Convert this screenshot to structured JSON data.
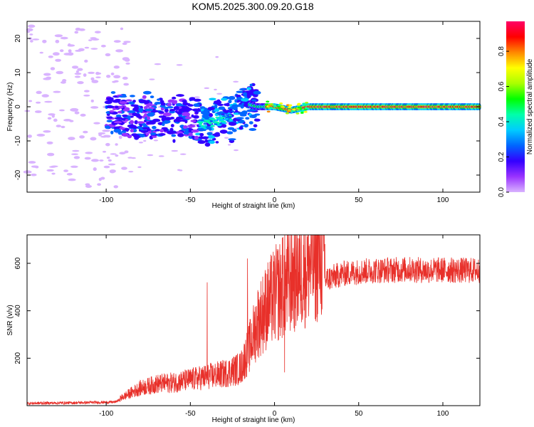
{
  "chart_data": [
    {
      "type": "heatmap",
      "title": "KOM5.2025.300.09.20.G18",
      "xlabel": "Height of straight line (km)",
      "ylabel": "Frequency (Hz)",
      "xlim": [
        -147,
        122
      ],
      "ylim": [
        -25,
        25
      ],
      "xticks": [
        -100,
        -50,
        0,
        50,
        100
      ],
      "xtick_labels": [
        "-100",
        "-50",
        "0",
        "50",
        "100"
      ],
      "yticks": [
        -20,
        -10,
        0,
        10,
        20
      ],
      "ytick_labels": [
        "-20",
        "-10",
        "0",
        "10",
        "20"
      ],
      "colorbar": {
        "label": "Normalized spectral amplitude",
        "range": [
          0,
          0.97
        ],
        "ticks": [
          0,
          0.2,
          0.4,
          0.6,
          0.8
        ],
        "tick_labels": [
          "0.0",
          "0.2",
          "0.4",
          "0.6",
          "0.8"
        ],
        "colormap": [
          "#d9b3ff",
          "#9933ff",
          "#3300ff",
          "#0066ff",
          "#00ccff",
          "#00ffaa",
          "#00ff00",
          "#aaff00",
          "#ffff00",
          "#ff8800",
          "#ff0000",
          "#ff0066"
        ]
      },
      "ridge": {
        "description_points_x": [
          -147,
          -100,
          -60,
          -40,
          -25,
          -18,
          -10,
          0,
          10,
          20,
          50,
          100,
          122
        ],
        "description_points_freq": [
          5,
          -2,
          -3,
          -5,
          -3,
          1,
          0,
          0,
          -1,
          0,
          0,
          0,
          0
        ],
        "peak_amplitude_x_range": [
          -5,
          122
        ]
      }
    },
    {
      "type": "line",
      "title": "",
      "xlabel": "Height of straight line (km)",
      "ylabel": "SNR (v/v)",
      "xlim": [
        -147,
        122
      ],
      "ylim": [
        0,
        720
      ],
      "xticks": [
        -100,
        -50,
        0,
        50,
        100
      ],
      "xtick_labels": [
        "-100",
        "-50",
        "0",
        "50",
        "100"
      ],
      "yticks": [
        200,
        400,
        600
      ],
      "ytick_labels": [
        "200",
        "400",
        "600"
      ],
      "series": [
        {
          "name": "SNR",
          "color": "#e8302a",
          "x": [
            -147,
            -120,
            -95,
            -90,
            -80,
            -70,
            -60,
            -50,
            -40,
            -30,
            -20,
            -15,
            -10,
            -5,
            0,
            5,
            10,
            20,
            30,
            40,
            50,
            60,
            70,
            80,
            90,
            100,
            110,
            122
          ],
          "y": [
            10,
            12,
            15,
            30,
            60,
            75,
            80,
            90,
            100,
            110,
            130,
            200,
            290,
            340,
            380,
            410,
            440,
            490,
            530,
            555,
            565,
            570,
            572,
            574,
            570,
            572,
            570,
            570
          ],
          "spikes": [
            {
              "x": -40,
              "y": 520
            },
            {
              "x": -16,
              "y": 620
            },
            {
              "x": 5,
              "y": 710
            },
            {
              "x": 6,
              "y": 140
            }
          ]
        }
      ]
    }
  ]
}
